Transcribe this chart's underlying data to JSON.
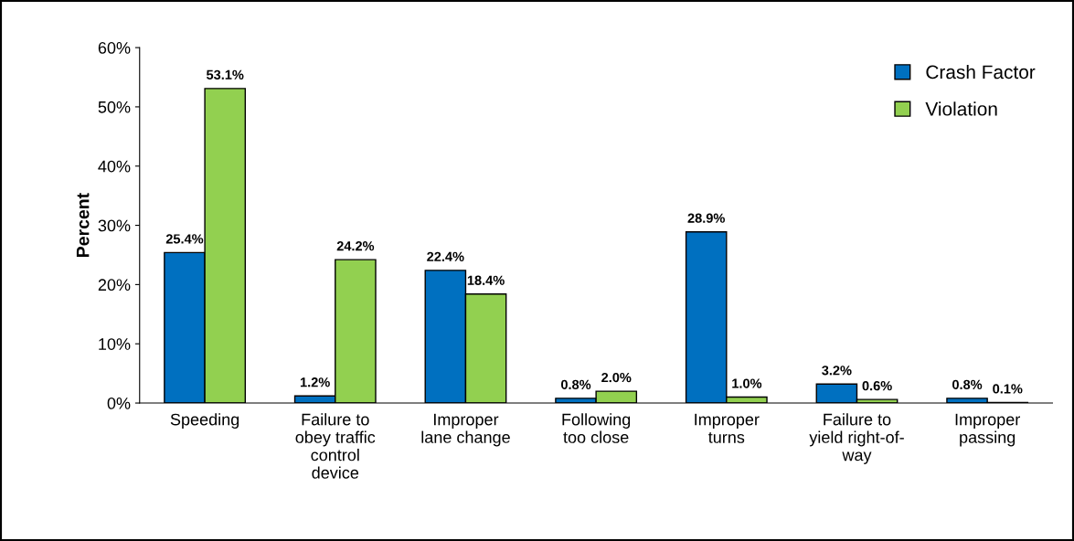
{
  "chart_data": {
    "type": "bar",
    "ylabel": "Percent",
    "categories": [
      "Speeding",
      "Failure to\nobey traffic\ncontrol\ndevice",
      "Improper\nlane change",
      "Following\ntoo close",
      "Improper\nturns",
      "Failure to\nyield right-of-\nway",
      "Improper\npassing"
    ],
    "series": [
      {
        "name": "Crash Factor",
        "color": "#0070c0",
        "values": [
          25.4,
          1.2,
          22.4,
          0.8,
          28.9,
          3.2,
          0.8
        ],
        "value_labels": [
          "25.4%",
          "1.2%",
          "22.4%",
          "0.8%",
          "28.9%",
          "3.2%",
          "0.8%"
        ]
      },
      {
        "name": "Violation",
        "color": "#92d050",
        "values": [
          53.1,
          24.2,
          18.4,
          2.0,
          1.0,
          0.6,
          0.1
        ],
        "value_labels": [
          "53.1%",
          "24.2%",
          "18.4%",
          "2.0%",
          "1.0%",
          "0.6%",
          "0.1%"
        ]
      }
    ],
    "ylim": [
      0,
      60
    ],
    "yticks": [
      {
        "value": 0,
        "label": "0%"
      },
      {
        "value": 10,
        "label": "10%"
      },
      {
        "value": 20,
        "label": "20%"
      },
      {
        "value": 30,
        "label": "30%"
      },
      {
        "value": 40,
        "label": "40%"
      },
      {
        "value": 50,
        "label": "50%"
      },
      {
        "value": 60,
        "label": "60%"
      }
    ],
    "grid": false,
    "legend": "top right"
  }
}
